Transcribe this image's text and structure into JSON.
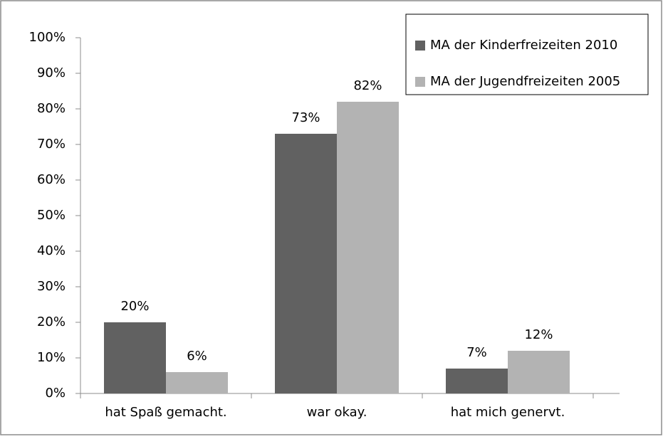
{
  "chart_data": {
    "type": "bar",
    "categories": [
      "hat Spaß gemacht.",
      "war okay.",
      "hat mich genervt."
    ],
    "series": [
      {
        "name": "MA der Kinderfreizeiten 2010",
        "color": "#616161",
        "values": [
          20,
          73,
          7
        ],
        "value_labels": [
          "20%",
          "73%",
          "7%"
        ]
      },
      {
        "name": "MA der Jugendfreizeiten 2005",
        "color": "#b3b3b3",
        "values": [
          6,
          82,
          12
        ],
        "value_labels": [
          "6%",
          "82%",
          "12%"
        ]
      }
    ],
    "ylim": [
      0,
      100
    ],
    "yticks": [
      {
        "value": 0,
        "label": "0%"
      },
      {
        "value": 10,
        "label": "10%"
      },
      {
        "value": 20,
        "label": "20%"
      },
      {
        "value": 30,
        "label": "30%"
      },
      {
        "value": 40,
        "label": "40%"
      },
      {
        "value": 50,
        "label": "50%"
      },
      {
        "value": 60,
        "label": "60%"
      },
      {
        "value": 70,
        "label": "70%"
      },
      {
        "value": 80,
        "label": "80%"
      },
      {
        "value": 90,
        "label": "90%"
      },
      {
        "value": 100,
        "label": "100%"
      }
    ],
    "grid": false,
    "legend": "top-right"
  }
}
